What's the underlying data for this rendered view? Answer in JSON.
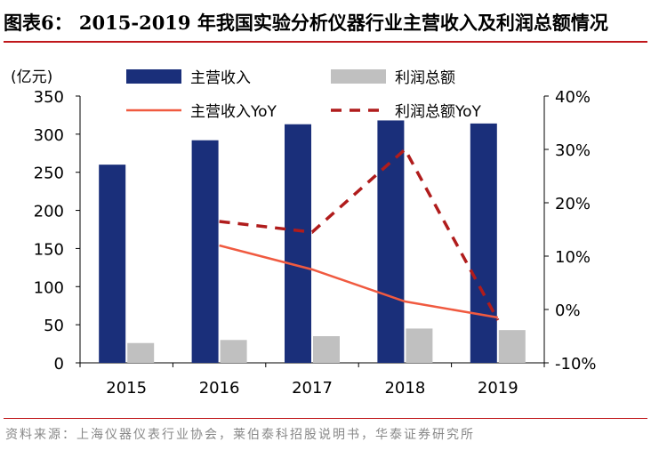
{
  "header": {
    "title": "图表6：  2015-2019 年我国实验分析仪器行业主营收入及利润总额情况"
  },
  "footer": {
    "source": "资料来源：上海仪器仪表行业协会，莱伯泰科招股说明书，华泰证券研究所"
  },
  "colors": {
    "revenue_bar": "#1a2f7a",
    "profit_bar": "#c0c0c0",
    "revenue_yoy_line": "#f05a40",
    "profit_yoy_line": "#b01c1c",
    "accent_rule": "#c0171b"
  },
  "chart_data": {
    "type": "bar",
    "categories": [
      "2015",
      "2016",
      "2017",
      "2018",
      "2019"
    ],
    "ylabel": "(亿元)",
    "ylim": [
      0,
      350
    ],
    "yticks": [
      "0",
      "50",
      "100",
      "150",
      "200",
      "250",
      "300",
      "350"
    ],
    "y2lim": [
      -10,
      40
    ],
    "y2ticks": [
      "-10%",
      "0%",
      "10%",
      "20%",
      "30%",
      "40%"
    ],
    "legend_placement": "top",
    "grid": false,
    "series": [
      {
        "name": "主营收入",
        "type": "bar",
        "axis": "left",
        "values": [
          260,
          292,
          313,
          318,
          314
        ]
      },
      {
        "name": "利润总额",
        "type": "bar",
        "axis": "left",
        "values": [
          26,
          30,
          35,
          45,
          43
        ]
      },
      {
        "name": "主营收入YoY",
        "type": "line",
        "style": "solid",
        "axis": "right",
        "values": [
          null,
          12,
          7.5,
          1.5,
          -1.5
        ]
      },
      {
        "name": "利润总额YoY",
        "type": "line",
        "style": "dashed",
        "axis": "right",
        "values": [
          null,
          16.5,
          14.5,
          30,
          -2
        ]
      }
    ]
  }
}
